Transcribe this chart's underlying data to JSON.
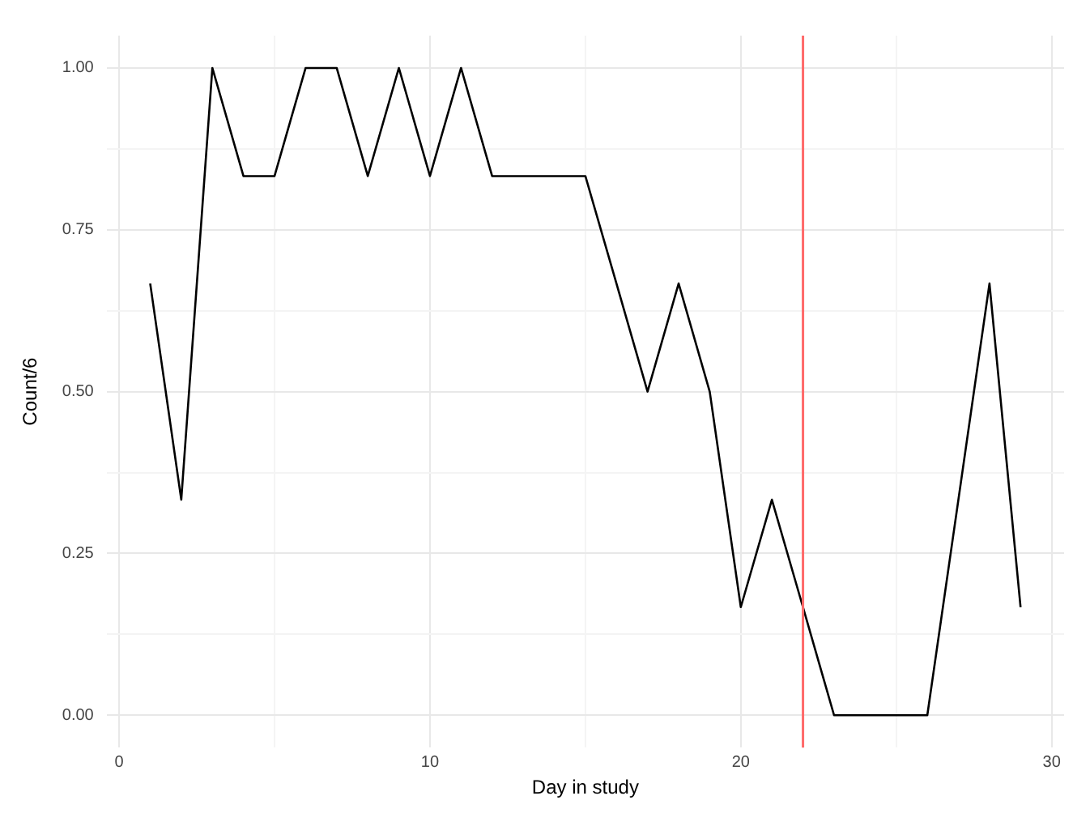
{
  "chart_data": {
    "type": "line",
    "xlabel": "Day in study",
    "ylabel": "Count/6",
    "x": [
      1,
      2,
      3,
      4,
      5,
      6,
      7,
      8,
      9,
      10,
      11,
      12,
      13,
      14,
      15,
      16,
      17,
      18,
      19,
      20,
      21,
      22,
      23,
      24,
      25,
      26,
      27,
      28,
      29
    ],
    "series": [
      {
        "color": "#000000",
        "values": [
          0.667,
          0.333,
          1,
          0.833,
          0.833,
          1,
          1,
          0.833,
          1,
          0.833,
          1,
          0.833,
          0.833,
          0.833,
          0.833,
          0.667,
          0.5,
          0.667,
          0.5,
          0.167,
          0.333,
          0.167,
          0,
          0,
          0,
          0,
          0.333,
          0.667,
          0.167
        ]
      }
    ],
    "xlim": [
      -0.4,
      30.4
    ],
    "ylim": [
      -0.05,
      1.05
    ],
    "xticks": [
      0,
      {
        "value": 5,
        "label": null
      },
      10,
      {
        "value": 15,
        "label": null
      },
      20,
      {
        "value": 25,
        "label": null
      },
      30
    ],
    "yticks": [
      {
        "value": 0,
        "label": "0.00"
      },
      {
        "value": 0.125,
        "label": null
      },
      {
        "value": 0.25,
        "label": "0.25"
      },
      {
        "value": 0.375,
        "label": null
      },
      {
        "value": 0.5,
        "label": "0.50"
      },
      {
        "value": 0.625,
        "label": null
      },
      {
        "value": 0.75,
        "label": "0.75"
      },
      {
        "value": 0.875,
        "label": null
      },
      {
        "value": 1,
        "label": "1.00"
      }
    ],
    "ref_lines": [
      {
        "axis": "x",
        "value": 22,
        "color": "#ff6a6a"
      }
    ],
    "grid": true,
    "legend": false,
    "marker": "none",
    "line_style": "solid"
  }
}
